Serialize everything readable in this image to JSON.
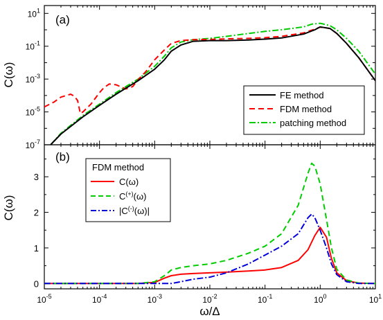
{
  "chart_data": [
    {
      "type": "line",
      "panel_label": "(a)",
      "ylabel": "C(ω)",
      "x_scale": "log",
      "y_scale": "log",
      "xlim": [
        1e-05,
        10
      ],
      "ylim": [
        1e-07,
        30
      ],
      "y_ticks": [
        {
          "value": 10,
          "base": "10",
          "exp": "1"
        },
        {
          "value": 0.1,
          "base": "10",
          "exp": "-1"
        },
        {
          "value": 0.001,
          "base": "10",
          "exp": "-3"
        },
        {
          "value": 1e-05,
          "base": "10",
          "exp": "-5"
        },
        {
          "value": 1e-07,
          "base": "10",
          "exp": "-7"
        }
      ],
      "legend_position": "bottom-right",
      "series": [
        {
          "name": "FE method",
          "color": "#000000",
          "style": "solid",
          "x": [
            1.3e-05,
            2e-05,
            5e-05,
            0.0001,
            0.0002,
            0.0005,
            0.001,
            0.0015,
            0.002,
            0.003,
            0.005,
            0.01,
            0.02,
            0.05,
            0.1,
            0.2,
            0.5,
            0.8,
            1.0,
            1.5,
            2,
            3,
            5,
            10
          ],
          "y": [
            1e-07,
            4.5e-07,
            5e-06,
            2.5e-05,
            0.00012,
            0.0008,
            0.004,
            0.015,
            0.05,
            0.12,
            0.2,
            0.22,
            0.22,
            0.24,
            0.27,
            0.32,
            0.55,
            1.0,
            1.5,
            1.2,
            0.6,
            0.15,
            0.02,
            0.0008
          ]
        },
        {
          "name": "FDM method",
          "color": "#ff0000",
          "style": "dashed",
          "x": [
            1e-05,
            1.5e-05,
            2e-05,
            3e-05,
            3.5e-05,
            4e-05,
            4.5e-05,
            5e-05,
            7e-05,
            0.0001,
            0.00012,
            0.00015,
            0.0002,
            0.0003,
            0.0004,
            0.0005,
            0.0007,
            0.001,
            0.0015,
            0.002,
            0.003,
            0.005,
            0.01,
            0.02,
            0.05,
            0.1,
            0.2,
            0.5,
            0.8,
            1.0,
            1.5,
            2,
            3,
            5,
            10
          ],
          "y": [
            2e-05,
            4e-05,
            8e-05,
            0.00012,
            9e-05,
            5e-05,
            8e-06,
            1e-05,
            3e-05,
            0.00015,
            0.0003,
            0.0005,
            0.00045,
            0.00025,
            0.00035,
            0.0009,
            0.003,
            0.015,
            0.06,
            0.15,
            0.22,
            0.25,
            0.26,
            0.28,
            0.3,
            0.33,
            0.4,
            0.65,
            1.1,
            1.45,
            1.2,
            0.6,
            0.15,
            0.02,
            0.0008
          ]
        },
        {
          "name": "patching method",
          "color": "#00cc00",
          "style": "dash-dot",
          "x": [
            1.3e-05,
            2e-05,
            5e-05,
            0.0001,
            0.0002,
            0.0005,
            0.001,
            0.0015,
            0.002,
            0.003,
            0.005,
            0.01,
            0.02,
            0.05,
            0.1,
            0.2,
            0.5,
            0.7,
            1.0,
            1.5,
            2,
            3,
            5,
            10
          ],
          "y": [
            1e-07,
            5e-07,
            6e-06,
            3e-05,
            0.00015,
            0.001,
            0.006,
            0.025,
            0.08,
            0.18,
            0.25,
            0.3,
            0.4,
            0.6,
            0.8,
            1.0,
            1.5,
            2.2,
            2.5,
            1.8,
            1.0,
            0.3,
            0.05,
            0.002
          ]
        }
      ]
    },
    {
      "type": "line",
      "panel_label": "(b)",
      "xlabel": "ω/Δ",
      "ylabel": "C(ω)",
      "x_scale": "log",
      "y_scale": "linear",
      "xlim": [
        1e-05,
        10
      ],
      "ylim": [
        -0.15,
        3.9
      ],
      "x_ticks": [
        {
          "value": 1e-05,
          "base": "10",
          "exp": "-5"
        },
        {
          "value": 0.0001,
          "base": "10",
          "exp": "-4"
        },
        {
          "value": 0.001,
          "base": "10",
          "exp": "-3"
        },
        {
          "value": 0.01,
          "base": "10",
          "exp": "-2"
        },
        {
          "value": 0.1,
          "base": "10",
          "exp": "-1"
        },
        {
          "value": 1,
          "base": "10",
          "exp": "0"
        },
        {
          "value": 10,
          "base": "10",
          "exp": "1"
        }
      ],
      "y_ticks": [
        "0",
        "1",
        "2",
        "3"
      ],
      "legend_title": "FDM method",
      "legend_position": "top-left",
      "series": [
        {
          "name": "C(ω)",
          "color": "#ff0000",
          "style": "solid",
          "x": [
            1e-05,
            0.0005,
            0.001,
            0.0015,
            0.002,
            0.003,
            0.005,
            0.01,
            0.02,
            0.05,
            0.1,
            0.2,
            0.4,
            0.6,
            0.8,
            1.0,
            1.3,
            1.6,
            2,
            3,
            5,
            10
          ],
          "y": [
            0,
            0,
            0.03,
            0.15,
            0.22,
            0.26,
            0.28,
            0.3,
            0.32,
            0.35,
            0.38,
            0.45,
            0.65,
            0.95,
            1.35,
            1.58,
            1.3,
            0.7,
            0.3,
            0.08,
            0.01,
            0
          ]
        },
        {
          "name": "C",
          "name_sup": "(+)",
          "name_tail": "(ω)",
          "color": "#00cc00",
          "style": "dashed",
          "x": [
            1e-05,
            0.0005,
            0.001,
            0.0015,
            0.002,
            0.003,
            0.005,
            0.01,
            0.02,
            0.05,
            0.1,
            0.2,
            0.4,
            0.6,
            0.7,
            0.8,
            1.0,
            1.3,
            1.6,
            2,
            3,
            5,
            10
          ],
          "y": [
            0,
            0,
            0.05,
            0.22,
            0.38,
            0.45,
            0.5,
            0.55,
            0.65,
            0.85,
            1.05,
            1.4,
            2.2,
            3.1,
            3.38,
            3.3,
            2.8,
            1.8,
            1.0,
            0.4,
            0.1,
            0.01,
            0
          ]
        },
        {
          "name": "|C",
          "name_sup": "(-)",
          "name_tail": "(ω)|",
          "color": "#0000dd",
          "style": "dash-dot",
          "x": [
            1e-05,
            0.002,
            0.003,
            0.005,
            0.01,
            0.02,
            0.05,
            0.1,
            0.2,
            0.4,
            0.6,
            0.7,
            0.8,
            1.0,
            1.3,
            1.6,
            2,
            3,
            5,
            10
          ],
          "y": [
            0,
            0,
            0.05,
            0.12,
            0.18,
            0.3,
            0.55,
            0.8,
            1.05,
            1.4,
            1.85,
            1.95,
            1.85,
            1.5,
            1.0,
            0.55,
            0.25,
            0.05,
            0,
            0
          ]
        }
      ]
    }
  ]
}
